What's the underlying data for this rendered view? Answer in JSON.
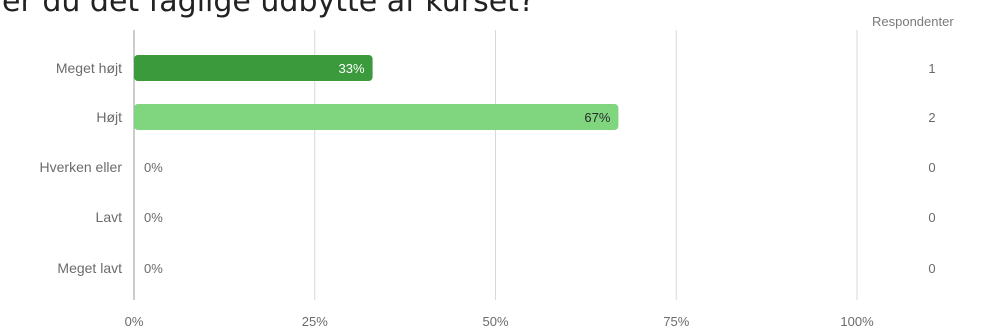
{
  "page": {
    "question_title": "er du det faglige udbytte af kurset?",
    "respondents_header": "Respondenter"
  },
  "chart_data": {
    "type": "bar",
    "orientation": "horizontal",
    "title": "er du det faglige udbytte af kurset?",
    "categories": [
      "Meget højt",
      "Højt",
      "Hverken eller",
      "Lavt",
      "Meget lavt"
    ],
    "values": [
      33,
      67,
      0,
      0,
      0
    ],
    "value_labels": [
      "33%",
      "67%",
      "0%",
      "0%",
      "0%"
    ],
    "respondents": [
      1,
      2,
      0,
      0,
      0
    ],
    "respondents_labels": [
      "1",
      "2",
      "0",
      "0",
      "0"
    ],
    "unit": "%",
    "xlim": [
      0,
      100
    ],
    "ticks": [
      0,
      25,
      50,
      75,
      100
    ],
    "tick_labels": [
      "0%",
      "25%",
      "50%",
      "75%",
      "100%"
    ],
    "grid": true,
    "colors": {
      "bar_dark": "#3a9a3c",
      "bar_light": "#80d67f",
      "grid": "#d8d8d8",
      "axis": "#9a9a9a",
      "label": "#6b6b6b",
      "value_label_on_dark": "#ffffff",
      "value_label_on_light": "#2a2a2a"
    },
    "bar_colors": [
      "#3a9a3c",
      "#80d67f",
      "#80d67f",
      "#80d67f",
      "#80d67f"
    ]
  }
}
